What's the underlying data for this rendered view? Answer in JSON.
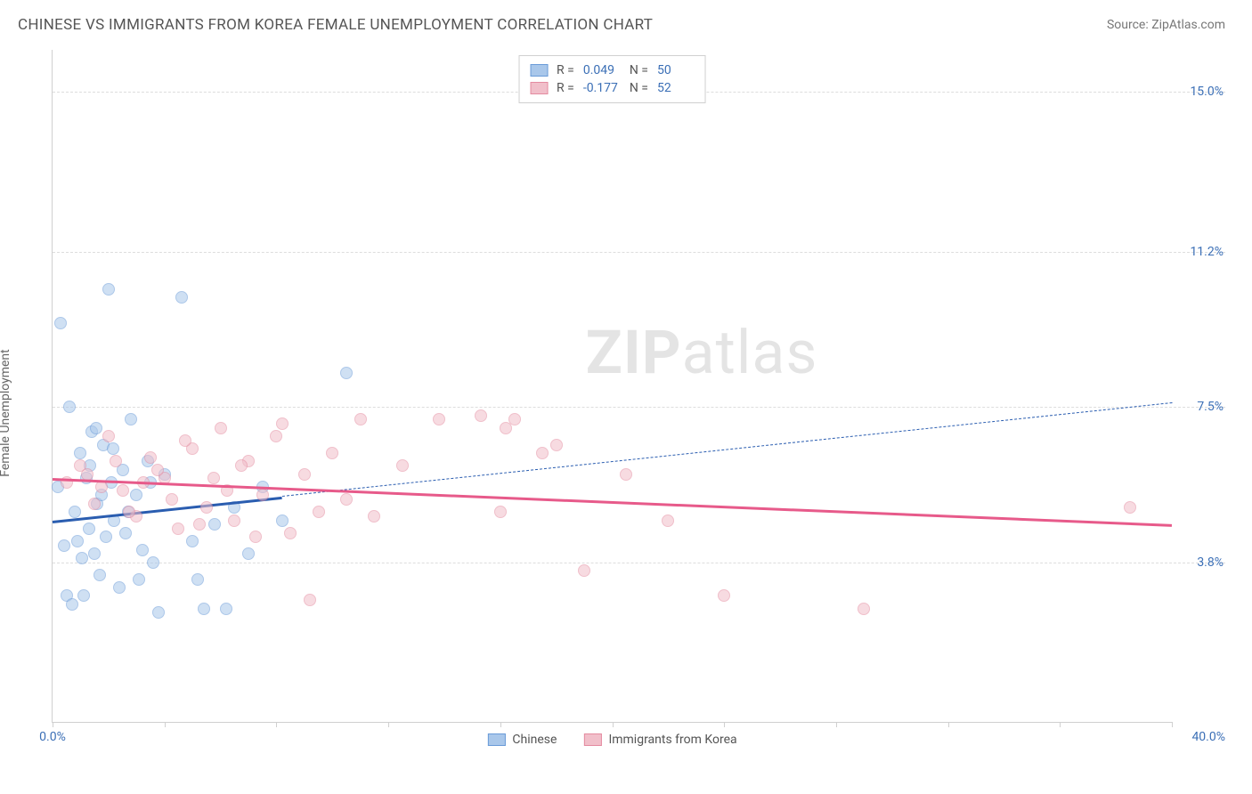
{
  "header": {
    "title": "CHINESE VS IMMIGRANTS FROM KOREA FEMALE UNEMPLOYMENT CORRELATION CHART",
    "source": "Source: ZipAtlas.com"
  },
  "watermark": {
    "prefix": "ZIP",
    "suffix": "atlas"
  },
  "chart": {
    "type": "scatter",
    "background_color": "#ffffff",
    "grid_color": "#dddddd",
    "axis_color": "#d0d0d0",
    "tick_label_color": "#3b6fb6",
    "axis_title_color": "#666666",
    "y_axis_title": "Female Unemployment",
    "xlim": [
      0,
      40
    ],
    "ylim": [
      0,
      16
    ],
    "x_ticks": [
      0,
      4,
      8,
      12,
      16,
      20,
      24,
      28,
      32,
      36,
      40
    ],
    "x_min_label": "0.0%",
    "x_max_label": "40.0%",
    "y_gridlines": [
      {
        "value": 3.8,
        "label": "3.8%"
      },
      {
        "value": 7.5,
        "label": "7.5%"
      },
      {
        "value": 11.2,
        "label": "11.2%"
      },
      {
        "value": 15.0,
        "label": "15.0%"
      }
    ],
    "point_radius": 7,
    "series": [
      {
        "name": "Chinese",
        "fill_color": "#a9c7ea",
        "border_color": "#6a9bd8",
        "line_color": "#2a5db0",
        "R": "0.049",
        "N": "50",
        "trend": {
          "x1": 0,
          "y1": 4.8,
          "x2": 40,
          "y2": 7.6,
          "solid_until_x": 8.2
        },
        "points": [
          [
            0.2,
            5.6
          ],
          [
            0.3,
            9.5
          ],
          [
            0.4,
            4.2
          ],
          [
            0.6,
            7.5
          ],
          [
            0.8,
            5.0
          ],
          [
            0.9,
            4.3
          ],
          [
            1.0,
            6.4
          ],
          [
            1.1,
            3.0
          ],
          [
            1.2,
            5.8
          ],
          [
            1.3,
            4.6
          ],
          [
            1.4,
            6.9
          ],
          [
            1.5,
            4.0
          ],
          [
            1.6,
            5.2
          ],
          [
            1.7,
            3.5
          ],
          [
            1.8,
            6.6
          ],
          [
            1.9,
            4.4
          ],
          [
            2.0,
            10.3
          ],
          [
            2.1,
            5.7
          ],
          [
            2.2,
            4.8
          ],
          [
            2.4,
            3.2
          ],
          [
            2.5,
            6.0
          ],
          [
            2.6,
            4.5
          ],
          [
            2.8,
            7.2
          ],
          [
            3.0,
            5.4
          ],
          [
            3.2,
            4.1
          ],
          [
            3.4,
            6.2
          ],
          [
            3.6,
            3.8
          ],
          [
            3.8,
            2.6
          ],
          [
            4.0,
            5.9
          ],
          [
            4.6,
            10.1
          ],
          [
            5.0,
            4.3
          ],
          [
            5.2,
            3.4
          ],
          [
            5.4,
            2.7
          ],
          [
            5.8,
            4.7
          ],
          [
            6.2,
            2.7
          ],
          [
            6.5,
            5.1
          ],
          [
            7.0,
            4.0
          ],
          [
            7.5,
            5.6
          ],
          [
            8.2,
            4.8
          ],
          [
            0.5,
            3.0
          ],
          [
            0.7,
            2.8
          ],
          [
            1.05,
            3.9
          ],
          [
            1.35,
            6.1
          ],
          [
            1.55,
            7.0
          ],
          [
            1.75,
            5.4
          ],
          [
            2.15,
            6.5
          ],
          [
            2.7,
            5.0
          ],
          [
            3.1,
            3.4
          ],
          [
            3.5,
            5.7
          ],
          [
            10.5,
            8.3
          ]
        ]
      },
      {
        "name": "Immigrants from Korea",
        "fill_color": "#f1bfca",
        "border_color": "#e48ba0",
        "line_color": "#e75a8a",
        "R": "-0.177",
        "N": "52",
        "trend": {
          "x1": 0,
          "y1": 5.8,
          "x2": 40,
          "y2": 4.7,
          "solid_until_x": 40
        },
        "points": [
          [
            0.5,
            5.7
          ],
          [
            1.0,
            6.1
          ],
          [
            1.5,
            5.2
          ],
          [
            2.0,
            6.8
          ],
          [
            2.5,
            5.5
          ],
          [
            3.0,
            4.9
          ],
          [
            3.5,
            6.3
          ],
          [
            4.0,
            5.8
          ],
          [
            4.5,
            4.6
          ],
          [
            5.0,
            6.5
          ],
          [
            5.5,
            5.1
          ],
          [
            6.0,
            7.0
          ],
          [
            6.5,
            4.8
          ],
          [
            7.0,
            6.2
          ],
          [
            7.5,
            5.4
          ],
          [
            8.0,
            6.8
          ],
          [
            8.2,
            7.1
          ],
          [
            8.5,
            4.5
          ],
          [
            9.0,
            5.9
          ],
          [
            9.2,
            2.9
          ],
          [
            9.5,
            5.0
          ],
          [
            10.0,
            6.4
          ],
          [
            10.5,
            5.3
          ],
          [
            11.0,
            7.2
          ],
          [
            11.5,
            4.9
          ],
          [
            12.5,
            6.1
          ],
          [
            13.8,
            7.2
          ],
          [
            15.3,
            7.3
          ],
          [
            16.0,
            5.0
          ],
          [
            16.2,
            7.0
          ],
          [
            16.5,
            7.2
          ],
          [
            17.5,
            6.4
          ],
          [
            18.0,
            6.6
          ],
          [
            19.0,
            3.6
          ],
          [
            20.5,
            5.9
          ],
          [
            22.0,
            4.8
          ],
          [
            24.0,
            3.0
          ],
          [
            29.0,
            2.7
          ],
          [
            38.5,
            5.1
          ],
          [
            1.25,
            5.9
          ],
          [
            1.75,
            5.6
          ],
          [
            2.25,
            6.2
          ],
          [
            2.75,
            5.0
          ],
          [
            3.25,
            5.7
          ],
          [
            3.75,
            6.0
          ],
          [
            4.25,
            5.3
          ],
          [
            4.75,
            6.7
          ],
          [
            5.25,
            4.7
          ],
          [
            5.75,
            5.8
          ],
          [
            6.25,
            5.5
          ],
          [
            6.75,
            6.1
          ],
          [
            7.25,
            4.4
          ]
        ]
      }
    ],
    "legend_top_labels": {
      "R": "R =",
      "N": "N ="
    },
    "legend_bottom": [
      {
        "series": 0
      },
      {
        "series": 1
      }
    ]
  }
}
